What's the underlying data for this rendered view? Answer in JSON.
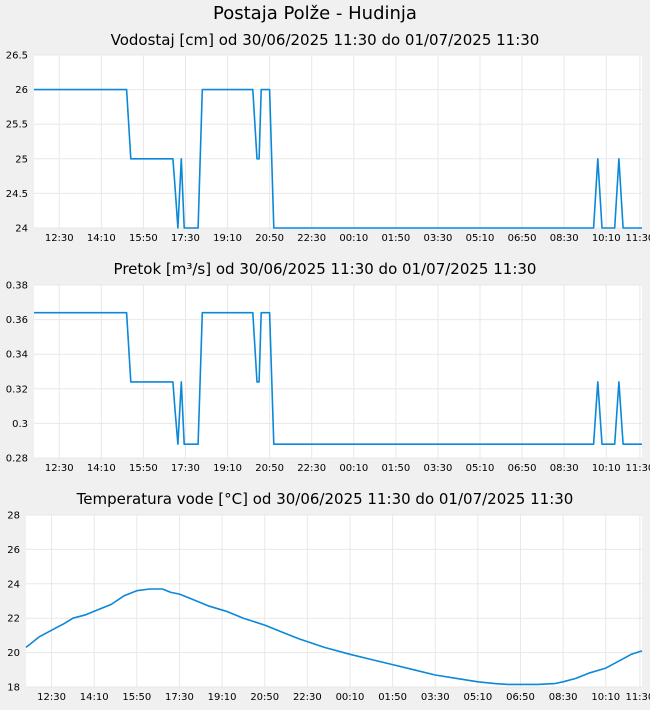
{
  "page": {
    "title": "Postaja Polže - Hudinja"
  },
  "colors": {
    "line": "#0b88d9",
    "grid": "#e8e8e8",
    "plot_bg": "#ffffff",
    "page_bg": "#f0f0f0"
  },
  "chart_data": [
    {
      "type": "line",
      "title": "Vodostaj [cm] od 30/06/2025 11:30 do 01/07/2025 11:30",
      "xlabel": "",
      "ylabel": "",
      "ylim": [
        24,
        26.5
      ],
      "yticks": [
        "26.5",
        "26",
        "25.5",
        "25",
        "24.5",
        "24"
      ],
      "ytick_values": [
        26.5,
        26,
        25.5,
        25,
        24.5,
        24
      ],
      "x_tick_labels": [
        "12:30",
        "14:10",
        "15:50",
        "17:30",
        "19:10",
        "20:50",
        "22:30",
        "00:10",
        "01:50",
        "03:30",
        "05:10",
        "06:50",
        "08:30",
        "10:10",
        "11:30"
      ],
      "x_tick_minutes": [
        60,
        160,
        260,
        360,
        460,
        560,
        660,
        760,
        860,
        960,
        1060,
        1160,
        1260,
        1360,
        1440
      ],
      "x_range_minutes": [
        0,
        1445
      ],
      "grid": true,
      "series": [
        {
          "x": [
            0,
            220,
            230,
            330,
            335,
            342,
            350,
            357,
            360,
            365,
            390,
            400,
            430,
            520,
            530,
            535,
            540,
            545,
            555,
            560,
            570,
            585,
            1330,
            1340,
            1350,
            1360,
            1380,
            1390,
            1400,
            1420,
            1445
          ],
          "y": [
            26,
            26,
            25,
            25,
            24.6,
            24,
            25,
            24,
            24,
            24,
            24,
            26,
            26,
            26,
            25,
            25,
            26,
            26,
            26,
            26,
            24,
            24,
            24,
            25,
            24,
            24,
            24,
            25,
            24,
            24,
            24
          ]
        }
      ]
    },
    {
      "type": "line",
      "title": "Pretok [m³/s] od 30/06/2025 11:30 do 01/07/2025 11:30",
      "xlabel": "",
      "ylabel": "",
      "ylim": [
        0.28,
        0.38
      ],
      "yticks": [
        "0.38",
        "0.36",
        "0.34",
        "0.32",
        "0.3",
        "0.28"
      ],
      "ytick_values": [
        0.38,
        0.36,
        0.34,
        0.32,
        0.3,
        0.28
      ],
      "x_tick_labels": [
        "12:30",
        "14:10",
        "15:50",
        "17:30",
        "19:10",
        "20:50",
        "22:30",
        "00:10",
        "01:50",
        "03:30",
        "05:10",
        "06:50",
        "08:30",
        "10:10",
        "11:30"
      ],
      "x_tick_minutes": [
        60,
        160,
        260,
        360,
        460,
        560,
        660,
        760,
        860,
        960,
        1060,
        1160,
        1260,
        1360,
        1440
      ],
      "x_range_minutes": [
        0,
        1445
      ],
      "grid": true,
      "series": [
        {
          "x": [
            0,
            220,
            230,
            330,
            335,
            342,
            350,
            357,
            360,
            365,
            390,
            400,
            430,
            520,
            530,
            535,
            540,
            545,
            555,
            560,
            570,
            585,
            1330,
            1340,
            1350,
            1360,
            1380,
            1390,
            1400,
            1420,
            1445
          ],
          "y": [
            0.364,
            0.364,
            0.324,
            0.324,
            0.308,
            0.288,
            0.324,
            0.288,
            0.288,
            0.288,
            0.288,
            0.364,
            0.364,
            0.364,
            0.324,
            0.324,
            0.364,
            0.364,
            0.364,
            0.364,
            0.288,
            0.288,
            0.288,
            0.324,
            0.288,
            0.288,
            0.288,
            0.324,
            0.288,
            0.288,
            0.288
          ]
        }
      ]
    },
    {
      "type": "line",
      "title": "Temperatura vode [°C] od 30/06/2025 11:30 do 01/07/2025 11:30",
      "xlabel": "",
      "ylabel": "",
      "ylim": [
        18,
        28
      ],
      "yticks": [
        "28",
        "26",
        "24",
        "22",
        "20",
        "18"
      ],
      "ytick_values": [
        28,
        26,
        24,
        22,
        20,
        18
      ],
      "x_tick_labels": [
        "12:30",
        "14:10",
        "15:50",
        "17:30",
        "19:10",
        "20:50",
        "22:30",
        "00:10",
        "01:50",
        "03:30",
        "05:10",
        "06:50",
        "08:30",
        "10:10",
        "11:30"
      ],
      "x_tick_minutes": [
        60,
        160,
        260,
        360,
        460,
        560,
        660,
        760,
        860,
        960,
        1060,
        1160,
        1260,
        1360,
        1440
      ],
      "x_range_minutes": [
        0,
        1445
      ],
      "grid": true,
      "series": [
        {
          "x": [
            0,
            10,
            30,
            60,
            90,
            110,
            140,
            160,
            200,
            230,
            260,
            290,
            320,
            340,
            360,
            390,
            430,
            470,
            510,
            560,
            600,
            640,
            700,
            760,
            810,
            860,
            910,
            960,
            1010,
            1060,
            1100,
            1130,
            1160,
            1200,
            1240,
            1260,
            1290,
            1320,
            1360,
            1390,
            1420,
            1445
          ],
          "y": [
            20.3,
            20.5,
            20.9,
            21.3,
            21.7,
            22.0,
            22.2,
            22.4,
            22.8,
            23.3,
            23.6,
            23.7,
            23.7,
            23.5,
            23.4,
            23.1,
            22.7,
            22.4,
            22.0,
            21.6,
            21.2,
            20.8,
            20.3,
            19.9,
            19.6,
            19.3,
            19.0,
            18.7,
            18.5,
            18.3,
            18.2,
            18.15,
            18.15,
            18.15,
            18.2,
            18.3,
            18.5,
            18.8,
            19.1,
            19.5,
            19.9,
            20.1
          ]
        }
      ]
    }
  ]
}
